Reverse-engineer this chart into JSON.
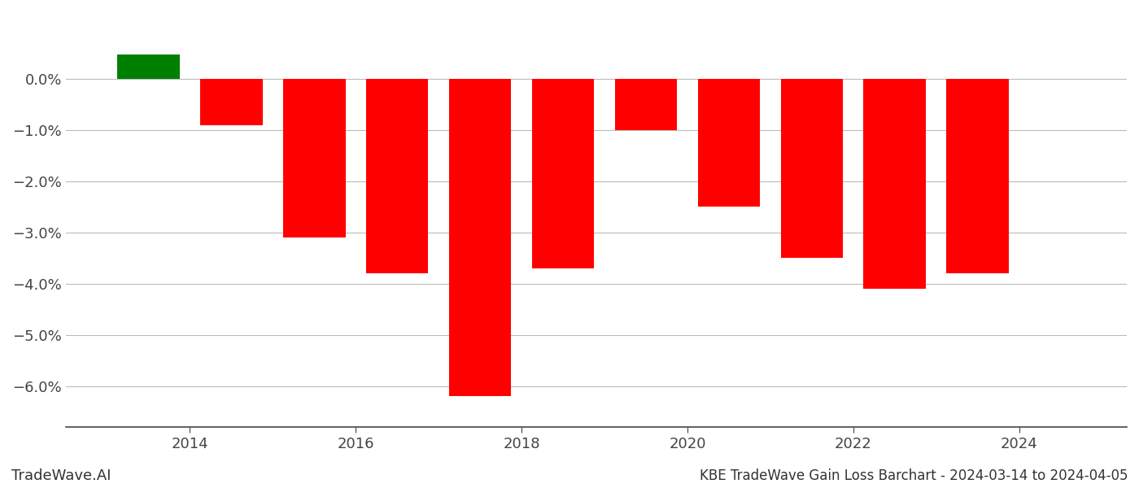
{
  "years": [
    2013.5,
    2014.5,
    2015.5,
    2016.5,
    2017.5,
    2018.5,
    2019.5,
    2020.5,
    2021.5,
    2022.5,
    2023.5
  ],
  "values": [
    0.0048,
    -0.009,
    -0.031,
    -0.038,
    -0.062,
    -0.037,
    -0.01,
    -0.025,
    -0.035,
    -0.041,
    -0.038
  ],
  "bar_colors": [
    "#008000",
    "#ff0000",
    "#ff0000",
    "#ff0000",
    "#ff0000",
    "#ff0000",
    "#ff0000",
    "#ff0000",
    "#ff0000",
    "#ff0000",
    "#ff0000"
  ],
  "title": "KBE TradeWave Gain Loss Barchart - 2024-03-14 to 2024-04-05",
  "watermark": "TradeWave.AI",
  "xlim": [
    2012.5,
    2025.3
  ],
  "ylim": [
    -0.068,
    0.013
  ],
  "xticks": [
    2014,
    2016,
    2018,
    2020,
    2022,
    2024
  ],
  "yticks": [
    0.0,
    -0.01,
    -0.02,
    -0.03,
    -0.04,
    -0.05,
    -0.06
  ],
  "ytick_labels": [
    "0.0%",
    "−1.0%",
    "−2.0%",
    "−3.0%",
    "−4.0%",
    "−5.0%",
    "−6.0%"
  ],
  "background_color": "#ffffff",
  "grid_color": "#bbbbbb",
  "bar_width": 0.75,
  "title_fontsize": 12,
  "tick_fontsize": 13
}
